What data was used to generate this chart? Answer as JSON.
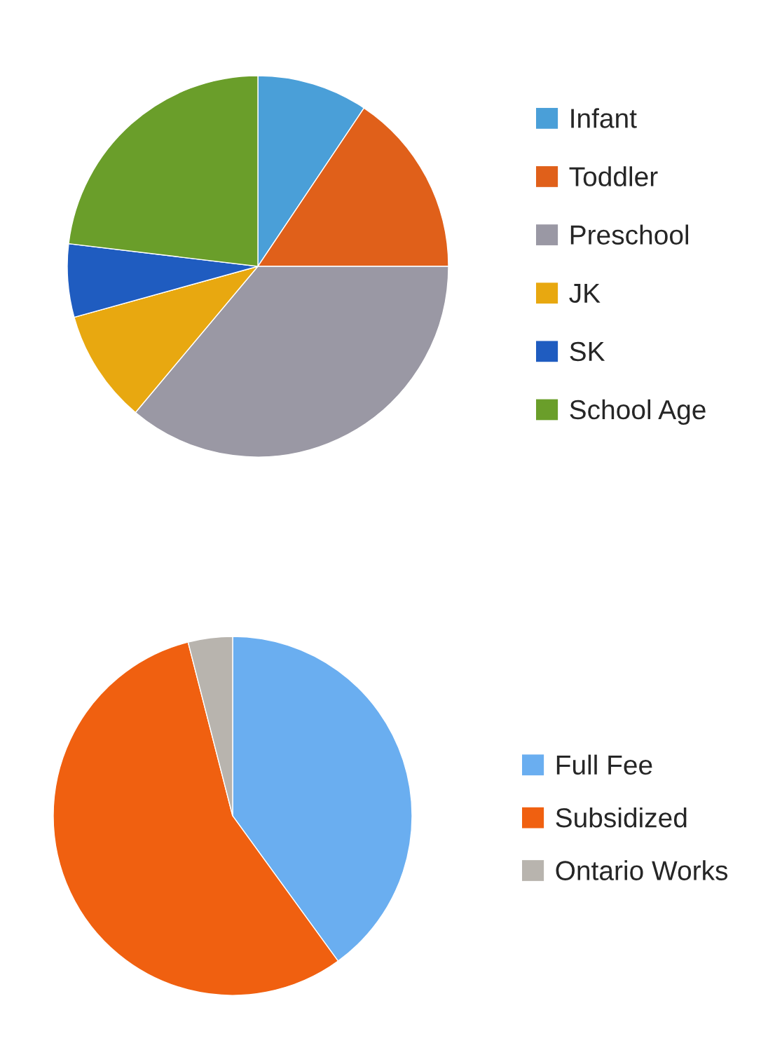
{
  "chart_data": [
    {
      "type": "pie",
      "categories": [
        "Infant",
        "Toddler",
        "Preschool",
        "JK",
        "SK",
        "School Age"
      ],
      "values": [
        9.4,
        15.6,
        36.1,
        9.6,
        6.2,
        23.1
      ],
      "colors": [
        "#4a9fd8",
        "#e0601a",
        "#9a98a4",
        "#e8a810",
        "#1f5cc0",
        "#6a9e2a"
      ],
      "legend": "right"
    },
    {
      "type": "pie",
      "categories": [
        "Full Fee",
        "Subsidized",
        "Ontario Works"
      ],
      "values": [
        40,
        56,
        4
      ],
      "colors": [
        "#6aaef0",
        "#f06010",
        "#b8b4ae"
      ],
      "legend": "right"
    }
  ]
}
